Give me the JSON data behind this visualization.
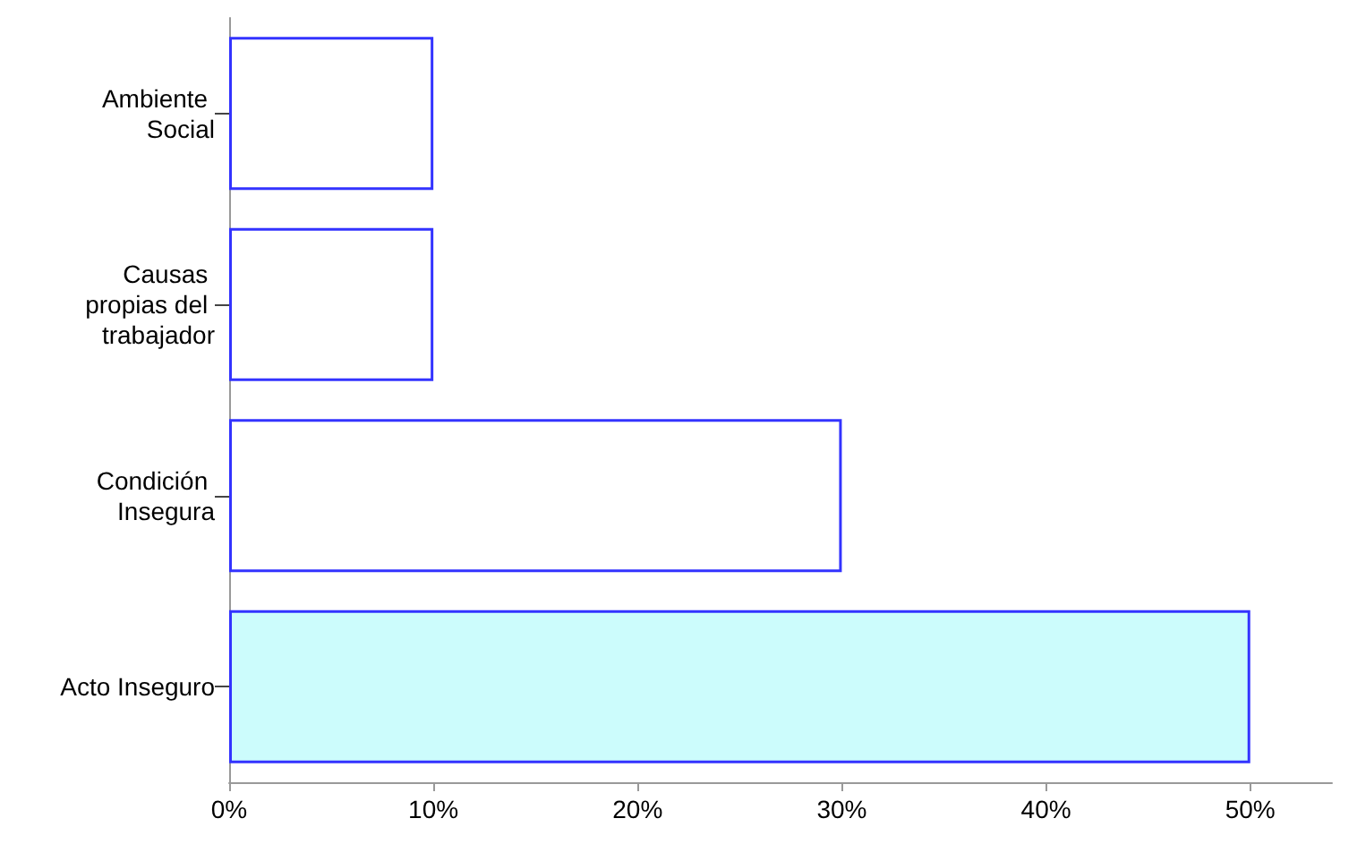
{
  "chart_data": {
    "type": "bar",
    "orientation": "horizontal",
    "categories": [
      "Ambiente Social",
      "Causas propias del trabajador",
      "Condición Insegura",
      "Acto Inseguro"
    ],
    "values": [
      10,
      10,
      30,
      50
    ],
    "colors": [
      "#ffffff",
      "#ffffff",
      "#ffffff",
      "#ccfcfc"
    ],
    "xlim": [
      0,
      54
    ],
    "xticks": [
      {
        "value": 0,
        "label": "0%"
      },
      {
        "value": 10,
        "label": "10%"
      },
      {
        "value": 20,
        "label": "20%"
      },
      {
        "value": 30,
        "label": "30%"
      },
      {
        "value": 40,
        "label": "40%"
      },
      {
        "value": 50,
        "label": "50%"
      }
    ],
    "grid": false
  }
}
